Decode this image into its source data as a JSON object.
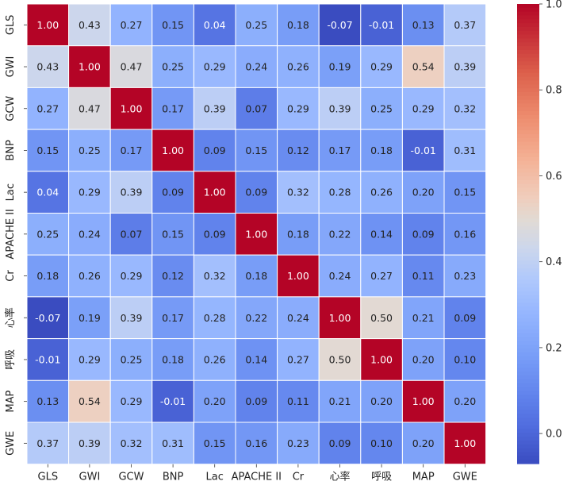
{
  "chart_data": {
    "type": "heatmap",
    "title": "",
    "xlabel": "",
    "ylabel": "",
    "labels": [
      "GLS",
      "GWI",
      "GCW",
      "BNP",
      "Lac",
      "APACHE II",
      "Cr",
      "心率",
      "呼吸",
      "MAP",
      "GWE"
    ],
    "values": [
      [
        1.0,
        0.43,
        0.27,
        0.15,
        0.04,
        0.25,
        0.18,
        -0.07,
        -0.01,
        0.13,
        0.37
      ],
      [
        0.43,
        1.0,
        0.47,
        0.25,
        0.29,
        0.24,
        0.26,
        0.19,
        0.29,
        0.54,
        0.39
      ],
      [
        0.27,
        0.47,
        1.0,
        0.17,
        0.39,
        0.07,
        0.29,
        0.39,
        0.25,
        0.29,
        0.32
      ],
      [
        0.15,
        0.25,
        0.17,
        1.0,
        0.09,
        0.15,
        0.12,
        0.17,
        0.18,
        -0.01,
        0.31
      ],
      [
        0.04,
        0.29,
        0.39,
        0.09,
        1.0,
        0.09,
        0.32,
        0.28,
        0.26,
        0.2,
        0.15
      ],
      [
        0.25,
        0.24,
        0.07,
        0.15,
        0.09,
        1.0,
        0.18,
        0.22,
        0.14,
        0.09,
        0.16
      ],
      [
        0.18,
        0.26,
        0.29,
        0.12,
        0.32,
        0.18,
        1.0,
        0.24,
        0.27,
        0.11,
        0.23
      ],
      [
        -0.07,
        0.19,
        0.39,
        0.17,
        0.28,
        0.22,
        0.24,
        1.0,
        0.5,
        0.21,
        0.09
      ],
      [
        -0.01,
        0.29,
        0.25,
        0.18,
        0.26,
        0.14,
        0.27,
        0.5,
        1.0,
        0.2,
        0.1
      ],
      [
        0.13,
        0.54,
        0.29,
        -0.01,
        0.2,
        0.09,
        0.11,
        0.21,
        0.2,
        1.0,
        0.2
      ],
      [
        0.37,
        0.39,
        0.32,
        0.31,
        0.15,
        0.16,
        0.23,
        0.09,
        0.1,
        0.2,
        1.0
      ]
    ],
    "color_scale": {
      "colormap": "coolwarm",
      "vmin": -0.07,
      "vmax": 1.0,
      "low_color": "#3b4cc0",
      "mid_color": "#dddddd",
      "high_color": "#b40426"
    },
    "colorbar_ticks": [
      "0.0",
      "0.2",
      "0.4",
      "0.6",
      "0.8",
      "1.0"
    ],
    "colorbar_tick_values": [
      0.0,
      0.2,
      0.4,
      0.6,
      0.8,
      1.0
    ],
    "grid": true
  }
}
